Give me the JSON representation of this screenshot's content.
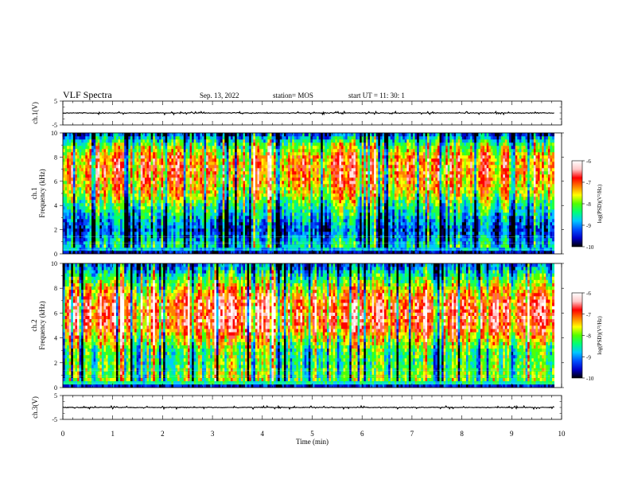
{
  "header": {
    "title": "VLF Spectra",
    "date": "Sep. 13, 2022",
    "station": "station= MOS",
    "start_ut": "start  UT =   11: 30: 1"
  },
  "colors": {
    "background": "#ffffff",
    "axis": "#000000",
    "colormap": [
      "#000000",
      "#0000c8",
      "#0050ff",
      "#00c8ff",
      "#00ff78",
      "#50ff00",
      "#ffff00",
      "#ff8000",
      "#ff0000",
      "#ffc8c8",
      "#ffffff"
    ]
  },
  "chart_data": [
    {
      "type": "line",
      "name": "ch1-waveform",
      "ylabel": "ch.1(V)",
      "ylim": [
        -5,
        5
      ],
      "yticks": [
        "5",
        "-5"
      ],
      "x": [
        0,
        2,
        4,
        6,
        8,
        9.85
      ],
      "y": [
        0,
        0,
        0,
        0,
        0,
        0
      ],
      "color": "#000000"
    },
    {
      "type": "heatmap",
      "name": "ch1-spectrogram",
      "ylabel": "ch.1\nFrequency (kHz)",
      "ylim": [
        0,
        10
      ],
      "yticks": [
        "0",
        "2",
        "4",
        "6",
        "8",
        "10"
      ],
      "xlim": [
        0,
        10
      ],
      "data_end_min": 9.85,
      "intensity_profile_khz": [
        0,
        0.5,
        1,
        2,
        3,
        4,
        5,
        6,
        7,
        8,
        9,
        9.5,
        10
      ],
      "intensity_profile_level": [
        -10,
        -8.5,
        -8.8,
        -9.3,
        -8.8,
        -8.3,
        -7.6,
        -7.3,
        -7.1,
        -7.3,
        -8.0,
        -8.7,
        -9.5
      ],
      "colorbar": {
        "label": "log(PSD)(V²/Hz)",
        "min": -10,
        "max": -6,
        "ticks": [
          "-6",
          "-7",
          "-8",
          "-9",
          "-10"
        ]
      }
    },
    {
      "type": "heatmap",
      "name": "ch2-spectrogram",
      "ylabel": "ch.2\nFrequency (kHz)",
      "ylim": [
        0,
        10
      ],
      "yticks": [
        "0",
        "2",
        "4",
        "6",
        "8",
        "10"
      ],
      "xlim": [
        0,
        10
      ],
      "data_end_min": 9.85,
      "intensity_profile_khz": [
        0,
        0.5,
        1,
        2,
        3,
        4,
        5,
        6,
        7,
        8,
        9,
        9.5,
        10
      ],
      "intensity_profile_level": [
        -10,
        -8.0,
        -8.1,
        -8.3,
        -8.2,
        -7.5,
        -6.9,
        -6.8,
        -6.9,
        -7.6,
        -8.4,
        -8.9,
        -9.3
      ],
      "colorbar": {
        "label": "log(PSD)(V²/Hz)",
        "min": -10,
        "max": -6,
        "ticks": [
          "-6",
          "-7",
          "-8",
          "-9",
          "-10"
        ]
      }
    },
    {
      "type": "line",
      "name": "ch3-waveform",
      "ylabel": "ch.3(V)",
      "ylim": [
        -5,
        5
      ],
      "yticks": [
        "5",
        "-5"
      ],
      "xlabel": "Time (min)",
      "xlim": [
        0,
        10
      ],
      "xticks": [
        "0",
        "1",
        "2",
        "3",
        "4",
        "5",
        "6",
        "7",
        "8",
        "9",
        "10"
      ],
      "x": [
        0,
        2,
        4,
        6,
        8,
        9.85
      ],
      "y": [
        0,
        0,
        0,
        0,
        0,
        0
      ],
      "color": "#000000"
    }
  ]
}
